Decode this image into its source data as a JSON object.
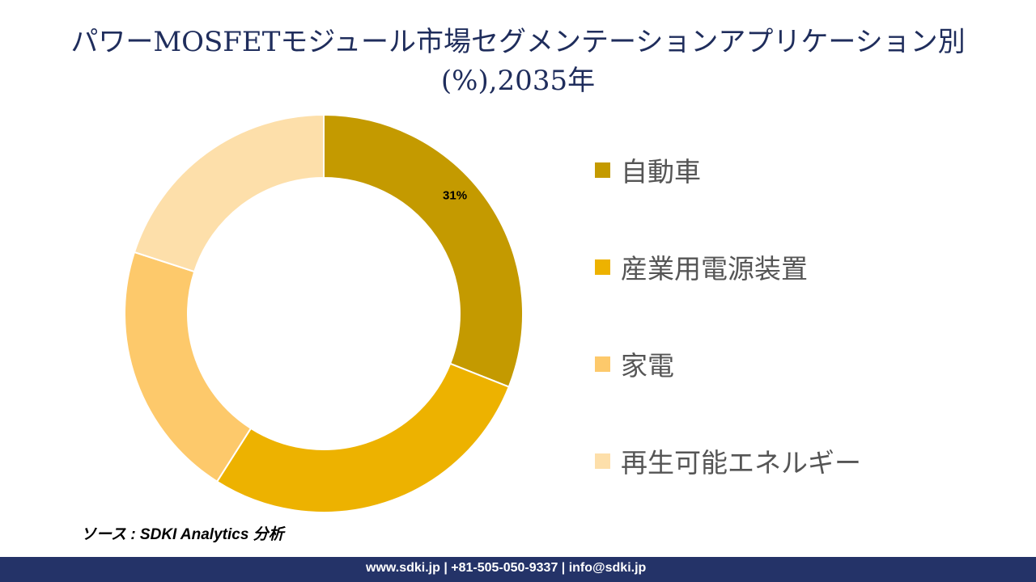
{
  "chart_data": {
    "type": "pie",
    "subtype": "donut",
    "title_line1": "パワーMOSFETモジュール市場セグメンテーションアプリケーション別",
    "title_line2": "(%),2035年",
    "categories": [
      "自動車",
      "産業用電源装置",
      "家電",
      "再生可能エネルギー"
    ],
    "values": [
      31,
      28,
      21,
      20
    ],
    "data_labels": [
      "31%",
      "",
      "",
      ""
    ],
    "colors": [
      "#C49A00",
      "#EDB200",
      "#FDC96B",
      "#FDDFAA"
    ],
    "legend_position": "right"
  },
  "source": "ソース : SDKI Analytics 分析",
  "footer": "www.sdki.jp | +81-505-050-9337 | info@sdki.jp"
}
